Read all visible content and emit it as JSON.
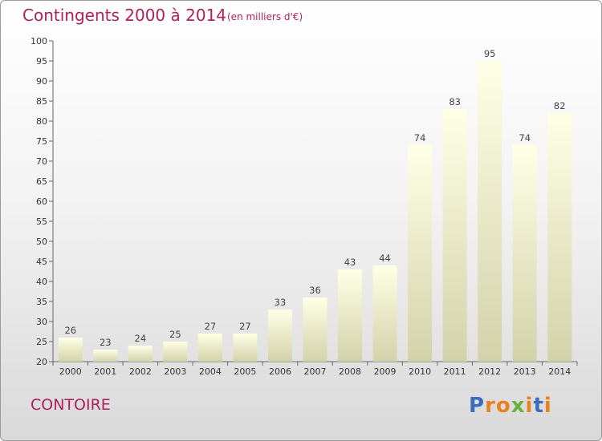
{
  "header": {
    "title": "Contingents 2000 à 2014",
    "subtitle": "(en milliers d'€)"
  },
  "footer": {
    "commune": "CONTOIRE",
    "logo": "Proxiti"
  },
  "colors": {
    "title": "#b0205a",
    "bar_top": "#ffffe6",
    "bar_bottom": "#d2d2aa",
    "logo_letters": [
      "#3a6fb7",
      "#e8821e",
      "#e8821e",
      "#6ab23c",
      "#e8821e",
      "#3a6fb7",
      "#e8821e"
    ]
  },
  "chart_data": {
    "type": "bar",
    "title": "Contingents 2000 à 2014",
    "subtitle": "(en milliers d'€)",
    "categories": [
      "2000",
      "2001",
      "2002",
      "2003",
      "2004",
      "2005",
      "2006",
      "2007",
      "2008",
      "2009",
      "2010",
      "2011",
      "2012",
      "2013",
      "2014"
    ],
    "values": [
      26,
      23,
      24,
      25,
      27,
      27,
      33,
      36,
      43,
      44,
      74,
      83,
      95,
      74,
      82
    ],
    "ylim": [
      20,
      100
    ],
    "yticks": [
      20,
      25,
      30,
      35,
      40,
      45,
      50,
      55,
      60,
      65,
      70,
      75,
      80,
      85,
      90,
      95,
      100
    ],
    "xlabel": "",
    "ylabel": "",
    "grid": false,
    "legend": "none"
  }
}
